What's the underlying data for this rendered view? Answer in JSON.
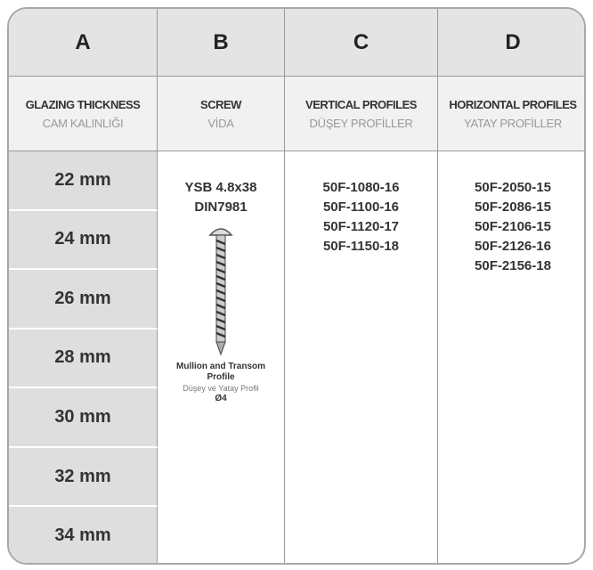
{
  "columns": [
    {
      "letter": "A",
      "title": "GLAZING THICKNESS",
      "subtitle": "CAM KALINLIĞI"
    },
    {
      "letter": "B",
      "title": "SCREW",
      "subtitle": "VİDA"
    },
    {
      "letter": "C",
      "title": "VERTICAL PROFILES",
      "subtitle": "DÜŞEY PROFİLLER"
    },
    {
      "letter": "D",
      "title": "HORIZONTAL PROFILES",
      "subtitle": "YATAY PROFİLLER"
    }
  ],
  "thickness": [
    "22 mm",
    "24 mm",
    "26 mm",
    "28 mm",
    "30 mm",
    "32 mm",
    "34 mm"
  ],
  "screw": {
    "name": [
      "YSB 4.8x38",
      "DIN7981"
    ],
    "profile": "Mullion and Transom Profile",
    "profile_tr": "Düşey ve Yatay Profil",
    "size": "Ø4"
  },
  "vertical_profiles": [
    "50F-1080-16",
    "50F-1100-16",
    "50F-1120-17",
    "50F-1150-18"
  ],
  "horizontal_profiles": [
    "50F-2050-15",
    "50F-2086-15",
    "50F-2106-15",
    "50F-2126-16",
    "50F-2156-18"
  ]
}
